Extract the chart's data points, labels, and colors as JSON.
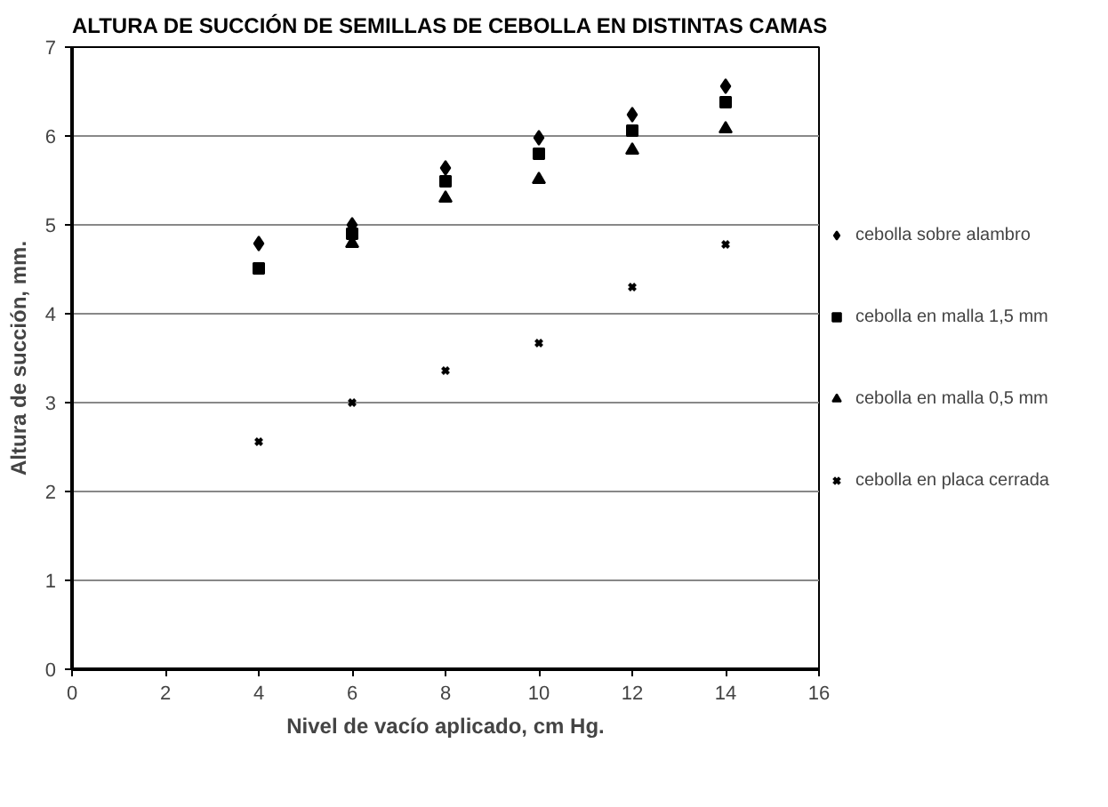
{
  "chart_data": {
    "type": "scatter",
    "title": "ALTURA DE SUCCIÓN DE SEMILLAS DE CEBOLLA EN DISTINTAS CAMAS",
    "xlabel": "Nivel de vacío aplicado, cm Hg.",
    "ylabel": "Altura de succión, mm.",
    "x": [
      4,
      6,
      8,
      10,
      12,
      14
    ],
    "series": [
      {
        "name": "cebolla sobre alambro",
        "color": "#000000",
        "marker": "diamond",
        "values": [
          4.79,
          5.0,
          5.64,
          5.98,
          6.24,
          6.56
        ]
      },
      {
        "name": "cebolla en malla 1,5 mm",
        "color": "#000000",
        "marker": "square",
        "values": [
          4.51,
          4.9,
          5.49,
          5.8,
          6.06,
          6.38
        ]
      },
      {
        "name": "cebolla en malla 0,5 mm",
        "color": "#000000",
        "marker": "triangle",
        "values": [
          null,
          4.79,
          5.3,
          5.51,
          5.84,
          6.08
        ]
      },
      {
        "name": "cebolla en placa cerrada",
        "color": "#000000",
        "marker": "cross",
        "values": [
          2.56,
          3.0,
          3.36,
          3.67,
          4.3,
          4.78
        ]
      }
    ],
    "xlim": [
      0,
      16
    ],
    "xticks": [
      0,
      2,
      4,
      6,
      8,
      10,
      12,
      14,
      16
    ],
    "ylim": [
      0,
      7
    ],
    "yticks": [
      0,
      1,
      2,
      3,
      4,
      5,
      6,
      7
    ],
    "grid": "y",
    "legend": "right"
  }
}
